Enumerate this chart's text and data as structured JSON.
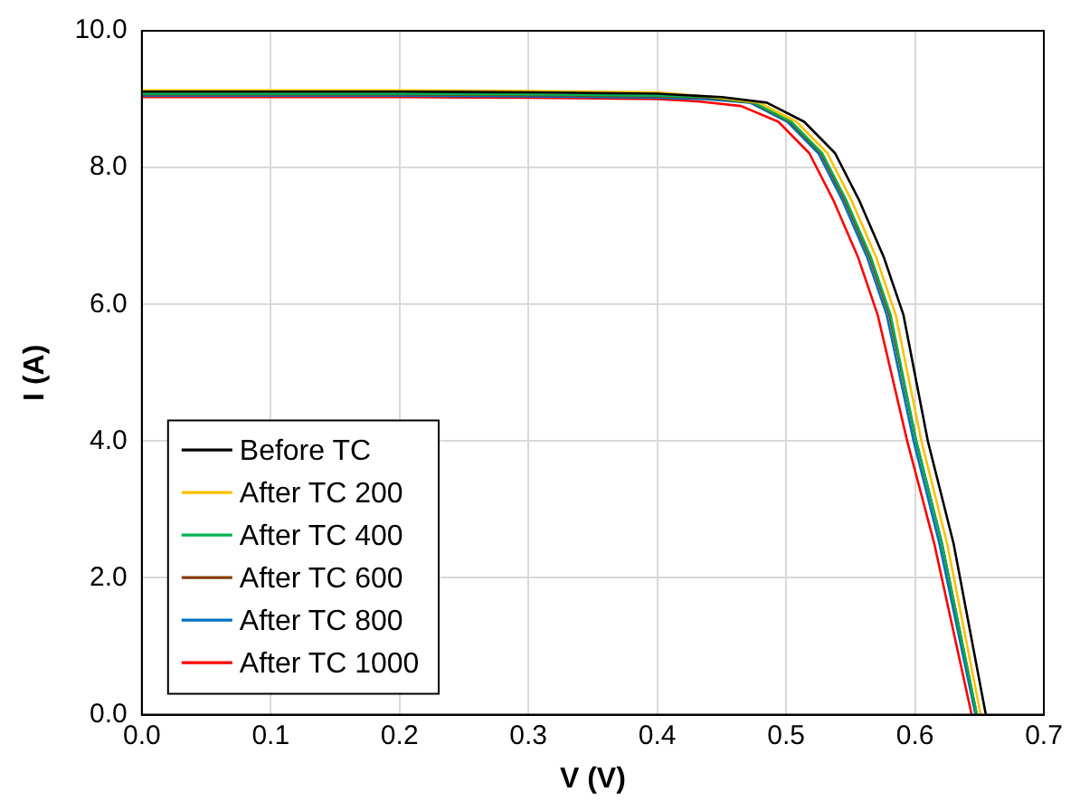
{
  "chart_data": {
    "type": "line",
    "xlabel": "V (V)",
    "ylabel": "I (A)",
    "xlim": [
      0,
      0.7
    ],
    "ylim": [
      0,
      10
    ],
    "xticks": [
      {
        "value": 0,
        "label": "0.0"
      },
      {
        "value": 0.1,
        "label": "0.1"
      },
      {
        "value": 0.2,
        "label": "0.2"
      },
      {
        "value": 0.3,
        "label": "0.3"
      },
      {
        "value": 0.4,
        "label": "0.4"
      },
      {
        "value": 0.5,
        "label": "0.5"
      },
      {
        "value": 0.6,
        "label": "0.6"
      },
      {
        "value": 0.7,
        "label": "0.7"
      }
    ],
    "yticks": [
      {
        "value": 0,
        "label": "0.0"
      },
      {
        "value": 2,
        "label": "2.0"
      },
      {
        "value": 4,
        "label": "4.0"
      },
      {
        "value": 6,
        "label": "6.0"
      },
      {
        "value": 8,
        "label": "8.0"
      },
      {
        "value": 10,
        "label": "10.0"
      }
    ],
    "grid": true,
    "legend": "bottom left",
    "marker": "none",
    "line_style": "solid",
    "series": [
      {
        "name": "Before TC",
        "color": "#000000",
        "x": [
          0,
          0.1,
          0.2,
          0.3,
          0.4,
          0.45,
          0.485,
          0.514,
          0.538,
          0.557,
          0.576,
          0.591,
          0.61,
          0.63,
          0.655
        ],
        "values": [
          9.11,
          9.11,
          9.11,
          9.1,
          9.08,
          9.03,
          8.95,
          8.67,
          8.21,
          7.51,
          6.68,
          5.85,
          4.0,
          2.5,
          0
        ]
      },
      {
        "name": "After TC 200",
        "color": "#ffc000",
        "x": [
          0,
          0.1,
          0.2,
          0.3,
          0.4,
          0.444,
          0.479,
          0.508,
          0.532,
          0.551,
          0.57,
          0.585,
          0.605,
          0.625,
          0.651
        ],
        "values": [
          9.13,
          9.13,
          9.13,
          9.12,
          9.1,
          9.03,
          8.95,
          8.67,
          8.21,
          7.51,
          6.68,
          5.85,
          4.0,
          2.5,
          0
        ]
      },
      {
        "name": "After TC 400",
        "color": "#00b050",
        "x": [
          0,
          0.1,
          0.2,
          0.3,
          0.4,
          0.44,
          0.475,
          0.504,
          0.528,
          0.547,
          0.566,
          0.581,
          0.601,
          0.621,
          0.648
        ],
        "values": [
          9.08,
          9.08,
          9.08,
          9.07,
          9.05,
          9.03,
          8.95,
          8.67,
          8.21,
          7.51,
          6.68,
          5.85,
          4.0,
          2.5,
          0
        ]
      },
      {
        "name": "After TC 600",
        "color": "#843c0c",
        "x": [
          0,
          0.1,
          0.2,
          0.3,
          0.4,
          0.439,
          0.474,
          0.503,
          0.527,
          0.546,
          0.565,
          0.58,
          0.601,
          0.621,
          0.648
        ],
        "values": [
          9.07,
          9.07,
          9.07,
          9.06,
          9.04,
          9.02,
          8.95,
          8.67,
          8.21,
          7.51,
          6.68,
          5.85,
          4.0,
          2.5,
          0
        ]
      },
      {
        "name": "After TC 800",
        "color": "#0070c0",
        "x": [
          0,
          0.1,
          0.2,
          0.3,
          0.4,
          0.437,
          0.472,
          0.501,
          0.525,
          0.544,
          0.563,
          0.578,
          0.599,
          0.619,
          0.647
        ],
        "values": [
          9.05,
          9.05,
          9.05,
          9.04,
          9.02,
          9.0,
          8.95,
          8.67,
          8.21,
          7.51,
          6.68,
          5.85,
          4.0,
          2.5,
          0
        ]
      },
      {
        "name": "After TC 1000",
        "color": "#ff0000",
        "x": [
          0,
          0.1,
          0.2,
          0.3,
          0.4,
          0.43,
          0.465,
          0.494,
          0.518,
          0.537,
          0.556,
          0.571,
          0.594,
          0.615,
          0.644
        ],
        "values": [
          9.03,
          9.03,
          9.03,
          9.02,
          9.0,
          8.97,
          8.9,
          8.67,
          8.21,
          7.51,
          6.68,
          5.85,
          4.0,
          2.5,
          0
        ]
      }
    ]
  }
}
